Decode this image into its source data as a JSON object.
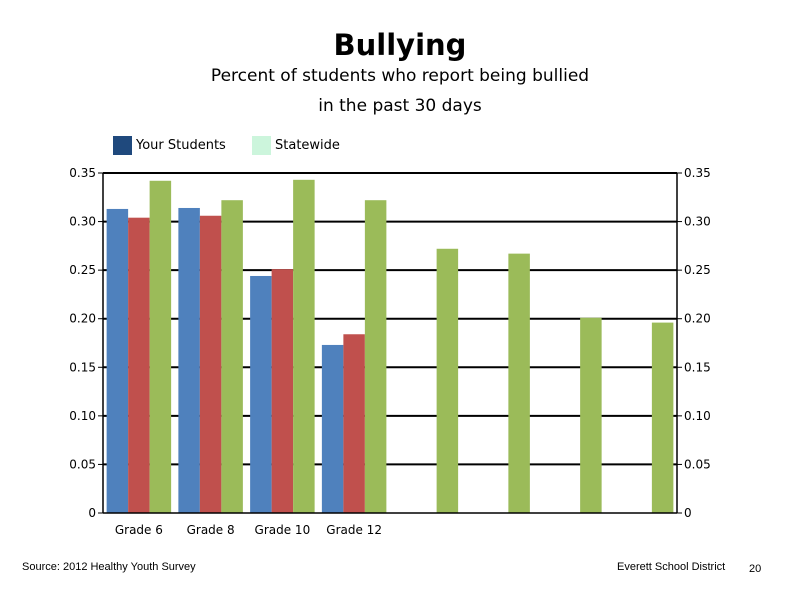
{
  "page_number": "20",
  "footer": {
    "source": "Source: 2012 Healthy Youth Survey",
    "organization": "Everett School District"
  },
  "legend": {
    "items": [
      {
        "label": "Your Students",
        "color": "#1F497D"
      },
      {
        "label": "Statewide",
        "color": "#CCF5DC"
      }
    ]
  },
  "chart_data": {
    "type": "bar",
    "title": "Bullying",
    "subtitle": [
      "Percent of students who report being bullied",
      "in the past 30 days"
    ],
    "categories": [
      "Grade 6",
      "Grade 8",
      "Grade 10",
      "Grade 12",
      "",
      "",
      "",
      ""
    ],
    "series": [
      {
        "color": "#4F81BD",
        "values": [
          0.313,
          0.314,
          0.244,
          0.173,
          null,
          null,
          null,
          null
        ]
      },
      {
        "color": "#C0504D",
        "values": [
          0.304,
          0.306,
          0.251,
          0.184,
          null,
          null,
          null,
          null
        ]
      },
      {
        "color": "#9BBB59",
        "values": [
          0.342,
          0.322,
          0.343,
          0.322,
          0.272,
          0.267,
          0.201,
          0.196
        ]
      }
    ],
    "ylim": [
      0,
      0.35
    ],
    "yticks": [
      "0",
      "0.05",
      "0.10",
      "0.15",
      "0.20",
      "0.25",
      "0.30",
      "0.35"
    ],
    "yticks_right": [
      "0",
      "0.05",
      "0.10",
      "0.15",
      "0.20",
      "0.25",
      "0.30",
      "0.35"
    ],
    "grid": true,
    "legend_position": "top-left"
  }
}
